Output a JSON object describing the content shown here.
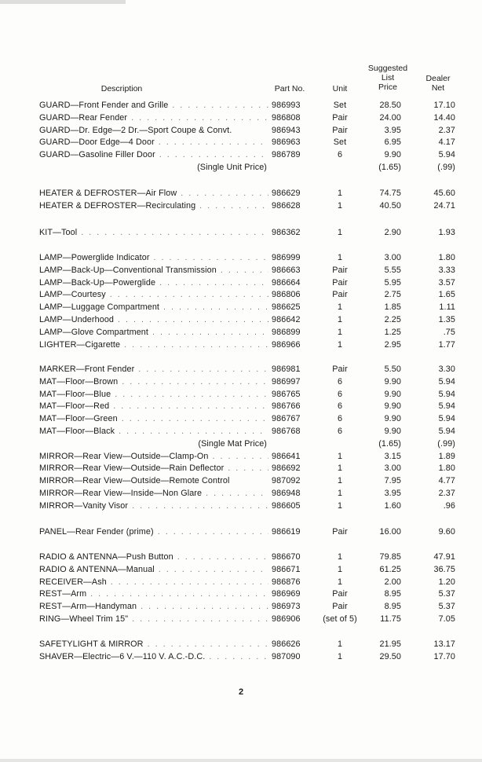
{
  "headers": {
    "description": "Description",
    "part_no": "Part No.",
    "unit": "Unit",
    "price_line1": "Suggested",
    "price_line2": "List",
    "price_line3": "Price",
    "net_line1": "Dealer",
    "net_line2": "Net"
  },
  "groups": [
    {
      "rows": [
        {
          "desc": "GUARD—Front Fender and Grille",
          "part": "986993",
          "unit": "Set",
          "price": "28.50",
          "net": "17.10"
        },
        {
          "desc": "GUARD—Rear Fender",
          "part": "986808",
          "unit": "Pair",
          "price": "24.00",
          "net": "14.40"
        },
        {
          "desc": "GUARD—Dr. Edge—2 Dr.—Sport Coupe & Convt.",
          "part": "986943",
          "unit": "Pair",
          "price": "3.95",
          "net": "2.37",
          "nodots": true
        },
        {
          "desc": "GUARD—Door Edge—4 Door",
          "part": "986963",
          "unit": "Set",
          "price": "6.95",
          "net": "4.17"
        },
        {
          "desc": "GUARD—Gasoline Filler Door",
          "part": "986789",
          "unit": "6",
          "price": "9.90",
          "net": "5.94"
        },
        {
          "note": "(Single Unit Price)",
          "price": "(1.65)",
          "net": "(.99)"
        }
      ]
    },
    {
      "rows": [
        {
          "desc": "HEATER & DEFROSTER—Air Flow",
          "part": "986629",
          "unit": "1",
          "price": "74.75",
          "net": "45.60"
        },
        {
          "desc": "HEATER & DEFROSTER—Recirculating",
          "part": "986628",
          "unit": "1",
          "price": "40.50",
          "net": "24.71"
        }
      ]
    },
    {
      "rows": [
        {
          "desc": "KIT—Tool",
          "part": "986362",
          "unit": "1",
          "price": "2.90",
          "net": "1.93"
        }
      ]
    },
    {
      "rows": [
        {
          "desc": "LAMP—Powerglide Indicator",
          "part": "986999",
          "unit": "1",
          "price": "3.00",
          "net": "1.80"
        },
        {
          "desc": "LAMP—Back-Up—Conventional Transmission",
          "part": "986663",
          "unit": "Pair",
          "price": "5.55",
          "net": "3.33"
        },
        {
          "desc": "LAMP—Back-Up—Powerglide",
          "part": "986664",
          "unit": "Pair",
          "price": "5.95",
          "net": "3.57"
        },
        {
          "desc": "LAMP—Courtesy",
          "part": "986806",
          "unit": "Pair",
          "price": "2.75",
          "net": "1.65"
        },
        {
          "desc": "LAMP—Luggage Compartment",
          "part": "986625",
          "unit": "1",
          "price": "1.85",
          "net": "1.11"
        },
        {
          "desc": "LAMP—Underhood",
          "part": "986642",
          "unit": "1",
          "price": "2.25",
          "net": "1.35"
        },
        {
          "desc": "LAMP—Glove Compartment",
          "part": "986899",
          "unit": "1",
          "price": "1.25",
          "net": ".75"
        },
        {
          "desc": "LIGHTER—Cigarette",
          "part": "986966",
          "unit": "1",
          "price": "2.95",
          "net": "1.77"
        }
      ]
    },
    {
      "rows": [
        {
          "desc": "MARKER—Front Fender",
          "part": "986981",
          "unit": "Pair",
          "price": "5.50",
          "net": "3.30"
        },
        {
          "desc": "MAT—Floor—Brown",
          "part": "986997",
          "unit": "6",
          "price": "9.90",
          "net": "5.94"
        },
        {
          "desc": "MAT—Floor—Blue",
          "part": "986765",
          "unit": "6",
          "price": "9.90",
          "net": "5.94"
        },
        {
          "desc": "MAT—Floor—Red",
          "part": "986766",
          "unit": "6",
          "price": "9.90",
          "net": "5.94"
        },
        {
          "desc": "MAT—Floor—Green",
          "part": "986767",
          "unit": "6",
          "price": "9.90",
          "net": "5.94"
        },
        {
          "desc": "MAT—Floor—Black",
          "part": "986768",
          "unit": "6",
          "price": "9.90",
          "net": "5.94"
        },
        {
          "note": "(Single Mat Price)",
          "price": "(1.65)",
          "net": "(.99)"
        },
        {
          "desc": "MIRROR—Rear View—Outside—Clamp-On",
          "part": "986641",
          "unit": "1",
          "price": "3.15",
          "net": "1.89"
        },
        {
          "desc": "MIRROR—Rear View—Outside—Rain Deflector",
          "part": "986692",
          "unit": "1",
          "price": "3.00",
          "net": "1.80"
        },
        {
          "desc": "MIRROR—Rear View—Outside—Remote Control",
          "part": "987092",
          "unit": "1",
          "price": "7.95",
          "net": "4.77",
          "nodots": true
        },
        {
          "desc": "MIRROR—Rear View—Inside—Non Glare",
          "part": "986948",
          "unit": "1",
          "price": "3.95",
          "net": "2.37"
        },
        {
          "desc": "MIRROR—Vanity Visor",
          "part": "986605",
          "unit": "1",
          "price": "1.60",
          "net": ".96"
        }
      ]
    },
    {
      "rows": [
        {
          "desc": "PANEL—Rear Fender (prime)",
          "part": "986619",
          "unit": "Pair",
          "price": "16.00",
          "net": "9.60"
        }
      ]
    },
    {
      "rows": [
        {
          "desc": "RADIO & ANTENNA—Push Button",
          "part": "986670",
          "unit": "1",
          "price": "79.85",
          "net": "47.91"
        },
        {
          "desc": "RADIO & ANTENNA—Manual",
          "part": "986671",
          "unit": "1",
          "price": "61.25",
          "net": "36.75"
        },
        {
          "desc": "RECEIVER—Ash",
          "part": "986876",
          "unit": "1",
          "price": "2.00",
          "net": "1.20"
        },
        {
          "desc": "REST—Arm",
          "part": "986969",
          "unit": "Pair",
          "price": "8.95",
          "net": "5.37"
        },
        {
          "desc": "REST—Arm—Handyman",
          "part": "986973",
          "unit": "Pair",
          "price": "8.95",
          "net": "5.37"
        },
        {
          "desc": "RING—Wheel Trim 15\"",
          "part": "986906",
          "unit": "(set of 5)",
          "price": "11.75",
          "net": "7.05"
        }
      ]
    },
    {
      "rows": [
        {
          "desc": "SAFETYLIGHT & MIRROR",
          "part": "986626",
          "unit": "1",
          "price": "21.95",
          "net": "13.17"
        },
        {
          "desc": "SHAVER—Electric—6 V.—110 V. A.C.-D.C.",
          "part": "987090",
          "unit": "1",
          "price": "29.50",
          "net": "17.70"
        }
      ]
    }
  ],
  "page_number": "2"
}
